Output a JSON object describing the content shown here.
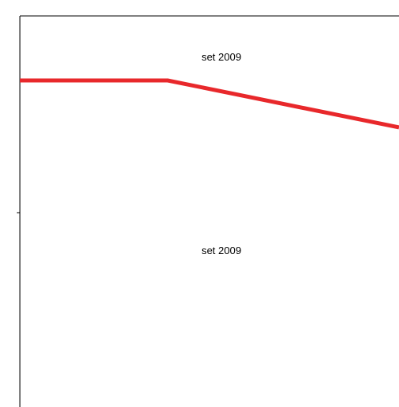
{
  "chart_data": {
    "type": "line",
    "labels": [
      "set 2009",
      "set 2009"
    ],
    "series": [
      {
        "color": "#e8282b",
        "points": [
          {
            "x": 0.0,
            "y": 0.835
          },
          {
            "x": 0.39,
            "y": 0.835
          },
          {
            "x": 1.0,
            "y": 0.715
          }
        ]
      }
    ],
    "xlim": [
      0,
      1
    ],
    "ylim": [
      0,
      1
    ],
    "grid": false
  }
}
